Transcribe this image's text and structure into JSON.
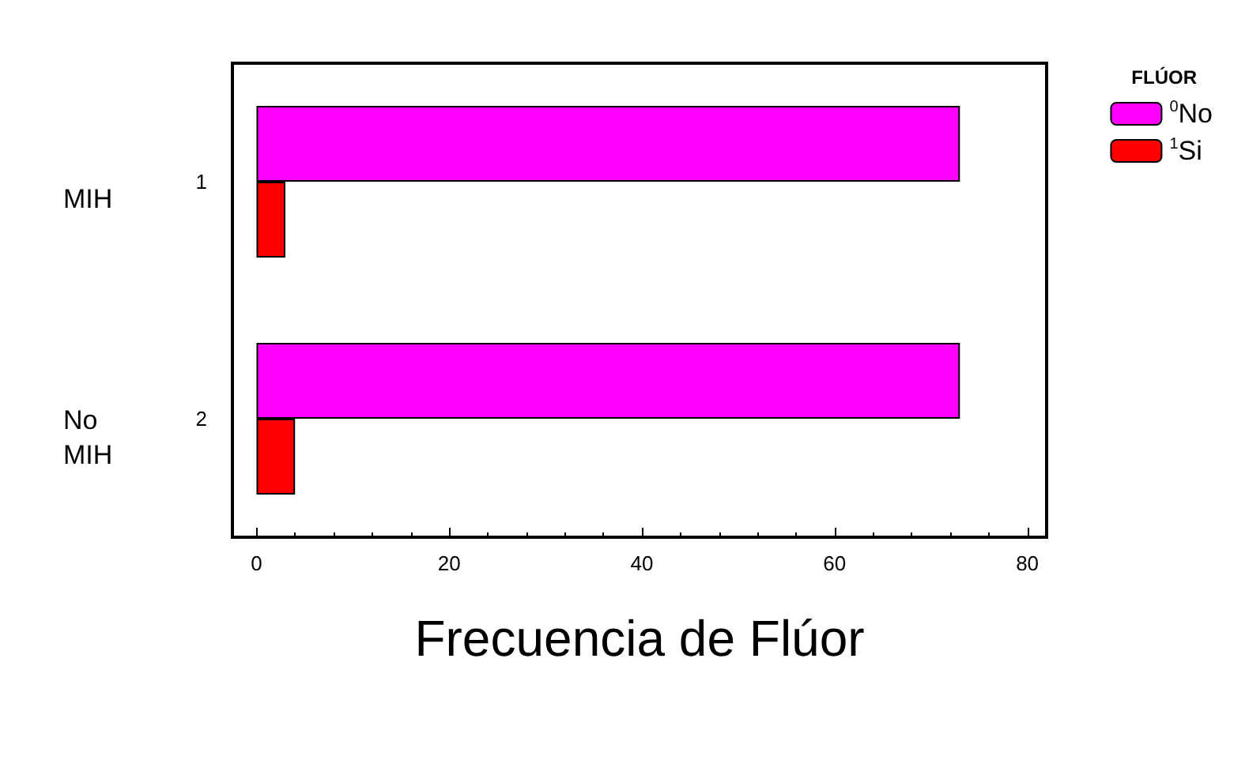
{
  "chart_data": {
    "type": "bar",
    "orientation": "horizontal",
    "xlabel": "Frecuencia de Flúor",
    "legend_title": "FLÚOR",
    "categories": [
      "1",
      "2"
    ],
    "series": [
      {
        "name": "$^{0}$No",
        "color": "#ff00ff",
        "values": [
          73,
          73
        ]
      },
      {
        "name": "$^{1}$Si",
        "color": "#ff0000",
        "values": [
          3,
          4
        ]
      }
    ],
    "xlim": [
      -2.5,
      82
    ],
    "xticks": [
      0,
      20,
      40,
      60,
      80
    ],
    "grid": false,
    "legend": "top right",
    "annotations": [
      "MIH",
      "No\nMIH"
    ]
  }
}
